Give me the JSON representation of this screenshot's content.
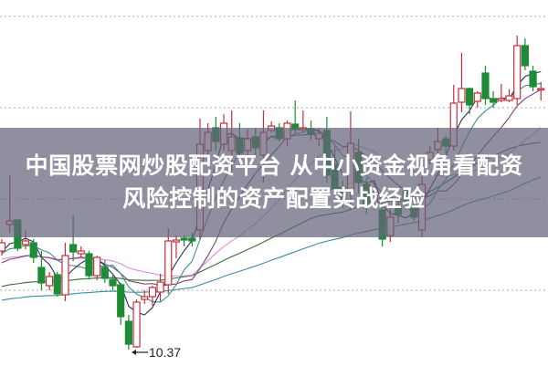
{
  "banner": {
    "line1": "中国股票网炒股配资平台 从中小资金视角看配资",
    "line2": "风险控制的资产配置实战经验"
  },
  "chart_data": {
    "type": "candlestick",
    "title": "",
    "xlabel": "",
    "ylabel": "",
    "grid": true,
    "colors": {
      "up": "#c62f3a",
      "down": "#1e8c34",
      "ma5": "#2c2c5e",
      "ma10": "#3f8f8f",
      "ma20": "#7a3f7a",
      "ma30": "#e28fd6",
      "ma60": "#3b6e35",
      "ma120": "#3a8ea0"
    },
    "low_label": "10.37",
    "candles": [
      [
        11.45,
        11.58,
        11.4,
        11.54
      ],
      [
        11.74,
        12.28,
        11.65,
        11.78
      ],
      [
        11.79,
        11.79,
        11.45,
        11.48
      ],
      [
        11.52,
        11.68,
        11.47,
        11.56
      ],
      [
        11.54,
        11.58,
        11.32,
        11.38
      ],
      [
        11.27,
        11.45,
        11.02,
        11.1
      ],
      [
        11.07,
        11.22,
        11.02,
        11.17
      ],
      [
        11.19,
        11.22,
        10.95,
        10.98
      ],
      [
        10.97,
        11.54,
        10.9,
        11.4
      ],
      [
        11.52,
        11.84,
        11.34,
        11.44
      ],
      [
        11.42,
        11.5,
        11.38,
        11.45
      ],
      [
        11.42,
        11.45,
        11.15,
        11.18
      ],
      [
        11.18,
        11.4,
        11.13,
        11.38
      ],
      [
        11.27,
        11.35,
        11.1,
        11.15
      ],
      [
        11.14,
        11.2,
        11.02,
        11.07
      ],
      [
        11.08,
        11.1,
        10.64,
        10.73
      ],
      [
        10.68,
        10.75,
        10.37,
        10.43
      ],
      [
        10.4,
        10.92,
        10.39,
        10.89
      ],
      [
        10.92,
        11.02,
        10.87,
        10.95
      ],
      [
        10.95,
        11.07,
        10.85,
        11.05
      ],
      [
        11.0,
        11.2,
        10.9,
        11.11
      ],
      [
        11.08,
        11.7,
        10.98,
        11.56
      ],
      [
        11.55,
        11.62,
        11.37,
        11.57
      ],
      [
        11.59,
        11.62,
        11.5,
        11.57
      ],
      [
        11.59,
        11.65,
        11.5,
        11.56
      ],
      [
        11.68,
        12.9,
        11.58,
        12.62
      ],
      [
        12.55,
        12.85,
        12.45,
        12.75
      ],
      [
        12.8,
        12.92,
        12.55,
        12.65
      ],
      [
        12.62,
        12.95,
        12.55,
        12.85
      ],
      [
        12.55,
        12.99,
        12.32,
        12.7
      ],
      [
        12.69,
        12.85,
        12.5,
        12.52
      ],
      [
        12.55,
        12.78,
        12.45,
        12.68
      ],
      [
        12.7,
        12.8,
        12.5,
        12.58
      ],
      [
        12.5,
        12.99,
        12.2,
        12.75
      ],
      [
        12.77,
        12.87,
        12.75,
        12.82
      ],
      [
        12.8,
        12.85,
        12.65,
        12.68
      ],
      [
        12.68,
        12.88,
        12.6,
        12.85
      ],
      [
        12.84,
        13.1,
        12.73,
        12.78
      ],
      [
        12.78,
        12.99,
        12.75,
        12.8
      ],
      [
        12.79,
        12.88,
        12.67,
        12.73
      ],
      [
        12.68,
        12.8,
        12.6,
        12.74
      ],
      [
        12.77,
        12.92,
        12.2,
        12.28
      ],
      [
        12.4,
        12.6,
        12.05,
        12.13
      ],
      [
        12.15,
        12.22,
        11.92,
        12.0
      ],
      [
        12.12,
        12.98,
        11.9,
        12.63
      ],
      [
        12.53,
        12.68,
        12.08,
        12.2
      ],
      [
        12.18,
        12.25,
        11.85,
        11.95
      ],
      [
        11.98,
        12.2,
        11.9,
        12.1
      ],
      [
        11.9,
        12.05,
        11.5,
        11.58
      ],
      [
        11.62,
        11.95,
        11.55,
        11.82
      ],
      [
        11.95,
        12.05,
        11.75,
        11.85
      ],
      [
        12.1,
        12.15,
        11.9,
        12.0
      ],
      [
        11.95,
        12.0,
        11.78,
        11.82
      ],
      [
        11.68,
        12.27,
        11.6,
        12.18
      ],
      [
        12.45,
        12.6,
        12.4,
        12.53
      ],
      [
        12.56,
        12.8,
        12.52,
        12.65
      ],
      [
        12.68,
        12.72,
        12.52,
        12.6
      ],
      [
        12.6,
        13.27,
        12.55,
        13.07
      ],
      [
        13.08,
        13.62,
        12.97,
        13.23
      ],
      [
        13.23,
        13.24,
        12.95,
        13.05
      ],
      [
        13.09,
        13.2,
        13.02,
        13.18
      ],
      [
        13.4,
        13.48,
        13.05,
        13.12
      ],
      [
        13.12,
        13.2,
        13.02,
        13.08
      ],
      [
        13.1,
        13.28,
        13.08,
        13.12
      ],
      [
        13.1,
        13.22,
        13.08,
        13.15
      ],
      [
        13.12,
        13.81,
        13.05,
        13.7
      ],
      [
        13.7,
        13.78,
        13.43,
        13.48
      ],
      [
        13.42,
        13.48,
        13.2,
        13.25
      ],
      [
        13.22,
        13.3,
        13.1,
        13.23
      ]
    ]
  }
}
